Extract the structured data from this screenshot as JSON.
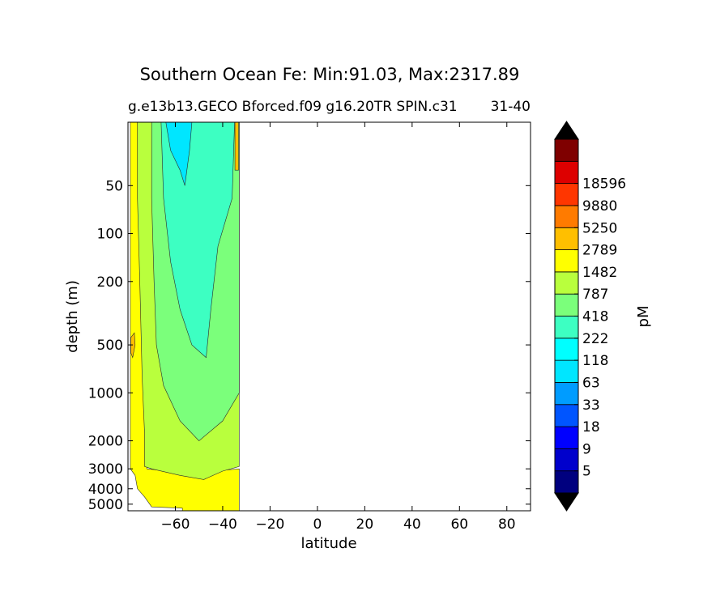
{
  "chart_data": {
    "type": "contourf",
    "title": "Southern Ocean Fe: Min:91.03, Max:2317.89",
    "subtitle_left": "g.e13b13.GECO Bforced.f09 g16.20TR SPIN.c31",
    "subtitle_right": "31-40",
    "xlabel": "latitude",
    "ylabel": "depth (m)",
    "xlim": [
      -80,
      90
    ],
    "ylim": [
      5500,
      20
    ],
    "x_ticks": [
      -60,
      -40,
      -20,
      0,
      20,
      40,
      60,
      80
    ],
    "x_tick_labels": [
      "−60",
      "−40",
      "−20",
      "0",
      "20",
      "40",
      "60",
      "80"
    ],
    "y_ticks": [
      50,
      100,
      200,
      500,
      1000,
      2000,
      3000,
      4000,
      5000
    ],
    "y_tick_labels": [
      "50",
      "100",
      "200",
      "500",
      "1000",
      "2000",
      "3000",
      "4000",
      "5000"
    ],
    "colorbar": {
      "label": "pM",
      "extend": "both",
      "levels": [
        "5",
        "9",
        "18",
        "33",
        "63",
        "118",
        "222",
        "418",
        "787",
        "1482",
        "2789",
        "5250",
        "9880",
        "18596"
      ],
      "colors": [
        "#00007f",
        "#0000cc",
        "#0000ff",
        "#0055ff",
        "#009cff",
        "#00e6ff",
        "#00ffff",
        "#3dffc2",
        "#7bff7b",
        "#b9ff3d",
        "#ffff00",
        "#ffbf00",
        "#ff7b00",
        "#ff3600",
        "#dd0000",
        "#7f0000"
      ],
      "under_color": "#00007f",
      "over_color": "#000000"
    },
    "fields": [
      {
        "level_color": "#ffff00",
        "label": "787-1482",
        "outline": [
          [
            -79,
            20
          ],
          [
            -72,
            20
          ],
          [
            -72,
            3000
          ],
          [
            -55,
            3200
          ],
          [
            -33,
            3000
          ],
          [
            -33,
            5500
          ],
          [
            -57,
            5500
          ],
          [
            -57,
            5300
          ],
          [
            -70,
            5200
          ],
          [
            -73,
            4500
          ],
          [
            -76,
            4000
          ],
          [
            -77,
            3300
          ],
          [
            -79,
            3000
          ]
        ]
      },
      {
        "level_color": "#b9ff3d",
        "label": "418-787",
        "outline": [
          [
            -76,
            20
          ],
          [
            -33,
            20
          ],
          [
            -33,
            2900
          ],
          [
            -40,
            3100
          ],
          [
            -48,
            3500
          ],
          [
            -58,
            3300
          ],
          [
            -70,
            3000
          ],
          [
            -73,
            2900
          ],
          [
            -73,
            1800
          ],
          [
            -74,
            800
          ],
          [
            -75,
            200
          ],
          [
            -76,
            60
          ]
        ]
      },
      {
        "level_color": "#7bff7b",
        "label": "222-418",
        "outline": [
          [
            -70,
            20
          ],
          [
            -33,
            20
          ],
          [
            -33,
            1000
          ],
          [
            -40,
            1500
          ],
          [
            -50,
            2000
          ],
          [
            -58,
            1500
          ],
          [
            -65,
            900
          ],
          [
            -68,
            500
          ],
          [
            -69,
            200
          ],
          [
            -70,
            60
          ]
        ]
      },
      {
        "level_color": "#3dffc2",
        "label": "118-222",
        "outline": [
          [
            -66,
            20
          ],
          [
            -35,
            20
          ],
          [
            -36,
            60
          ],
          [
            -42,
            120
          ],
          [
            -45,
            300
          ],
          [
            -47,
            600
          ],
          [
            -53,
            500
          ],
          [
            -58,
            300
          ],
          [
            -62,
            150
          ],
          [
            -65,
            60
          ]
        ]
      },
      {
        "level_color": "#00e6ff",
        "label": "63-118",
        "outline": [
          [
            -64,
            20
          ],
          [
            -53,
            20
          ],
          [
            -54,
            30
          ],
          [
            -56,
            50
          ],
          [
            -58,
            40
          ],
          [
            -62,
            30
          ]
        ]
      },
      {
        "level_color": "#ffbf00",
        "label": "1482-2789",
        "outline": [
          [
            -34.8,
            20
          ],
          [
            -33.3,
            20
          ],
          [
            -33.3,
            40
          ],
          [
            -34.8,
            40
          ]
        ]
      },
      {
        "level_color": "#ffbf00",
        "label": "1482-2789",
        "outline": [
          [
            -78.8,
            450
          ],
          [
            -77.3,
            420
          ],
          [
            -77,
            500
          ],
          [
            -78,
            600
          ],
          [
            -78.8,
            560
          ]
        ]
      }
    ]
  }
}
